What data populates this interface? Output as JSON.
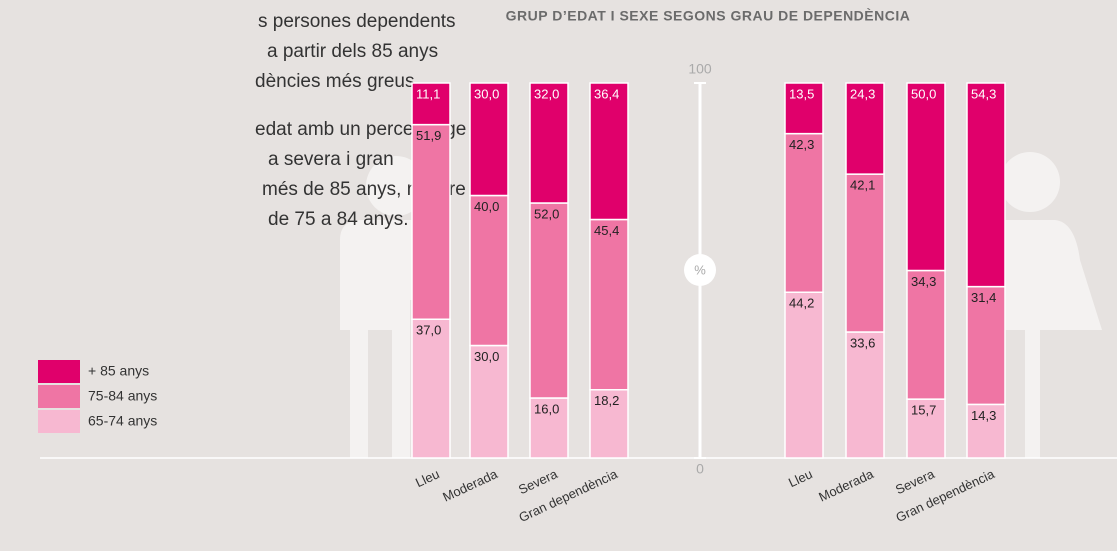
{
  "text": {
    "lines": [
      "s persones dependents",
      "a partir dels 85 anys",
      "dències més greus.",
      "edat amb un percentatge",
      "a severa i gran",
      "més de 85 anys, mentre",
      "de 75 a 84 anys."
    ]
  },
  "chart_data": {
    "type": "bar",
    "stacked": true,
    "title": "GRUP D’EDAT I SEXE SEGONS GRAU DE DEPENDÈNCIA",
    "y_label": "%",
    "ylim": [
      0,
      100
    ],
    "yticks": [
      0,
      100
    ],
    "categories": [
      "Lleu",
      "Moderada",
      "Severa",
      "Gran dependència",
      "Lleu",
      "Moderada",
      "Severa",
      "Gran dependència"
    ],
    "series": [
      {
        "name": "65-74 anys",
        "color": "#f7b8d1",
        "values": [
          37.0,
          30.0,
          16.0,
          18.2,
          44.2,
          33.6,
          15.7,
          14.3
        ],
        "value_labels": [
          "37,0",
          "30,0",
          "16,0",
          "18,2",
          "44,2",
          "33,6",
          "15,7",
          "14,3"
        ]
      },
      {
        "name": "75-84 anys",
        "color": "#ef75a4",
        "values": [
          51.9,
          40.0,
          52.0,
          45.4,
          42.3,
          42.1,
          34.3,
          31.4
        ],
        "value_labels": [
          "51,9",
          "40,0",
          "52,0",
          "45,4",
          "42,3",
          "42,1",
          "34,3",
          "31,4"
        ]
      },
      {
        "name": "+ 85 anys",
        "color": "#e0006b",
        "values": [
          11.1,
          30.0,
          32.0,
          36.4,
          13.5,
          24.3,
          50.0,
          54.3
        ],
        "value_labels": [
          "11,1",
          "30,0",
          "32,0",
          "36,4",
          "13,5",
          "24,3",
          "50,0",
          "54,3"
        ]
      }
    ]
  }
}
